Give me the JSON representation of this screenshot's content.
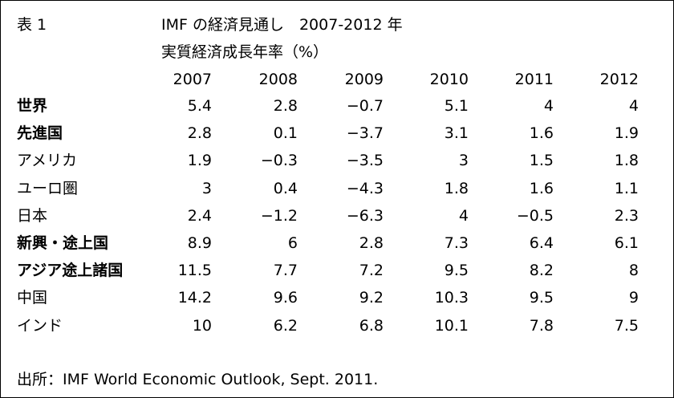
{
  "table_label": "表 1",
  "title_line1": "IMF の経済見通し　2007-2012 年",
  "title_line2": "実質経済成長年率（%）",
  "years": [
    "2007",
    "2008",
    "2009",
    "2010",
    "2011",
    "2012"
  ],
  "rows": [
    {
      "label": "世界",
      "bold": true,
      "values": [
        "5.4",
        "2.8",
        "−0.7",
        "5.1",
        "4",
        "4"
      ]
    },
    {
      "label": "先進国",
      "bold": true,
      "values": [
        "2.8",
        "0.1",
        "−3.7",
        "3.1",
        "1.6",
        "1.9"
      ]
    },
    {
      "label": "アメリカ",
      "bold": false,
      "values": [
        "1.9",
        "−0.3",
        "−3.5",
        "3",
        "1.5",
        "1.8"
      ]
    },
    {
      "label": "ユーロ圏",
      "bold": false,
      "values": [
        "3",
        "0.4",
        "−4.3",
        "1.8",
        "1.6",
        "1.1"
      ]
    },
    {
      "label": "日本",
      "bold": false,
      "values": [
        "2.4",
        "−1.2",
        "−6.3",
        "4",
        "−0.5",
        "2.3"
      ]
    },
    {
      "label": "新興・途上国",
      "bold": true,
      "values": [
        "8.9",
        "6",
        "2.8",
        "7.3",
        "6.4",
        "6.1"
      ]
    },
    {
      "label": "アジア途上諸国",
      "bold": true,
      "values": [
        "11.5",
        "7.7",
        "7.2",
        "9.5",
        "8.2",
        "8"
      ]
    },
    {
      "label": "中国",
      "bold": false,
      "values": [
        "14.2",
        "9.6",
        "9.2",
        "10.3",
        "9.5",
        "9"
      ]
    },
    {
      "label": "インド",
      "bold": false,
      "values": [
        "10",
        "6.2",
        "6.8",
        "10.1",
        "7.8",
        "7.5"
      ]
    }
  ],
  "source": "出所：IMF World Economic Outlook, Sept. 2011."
}
